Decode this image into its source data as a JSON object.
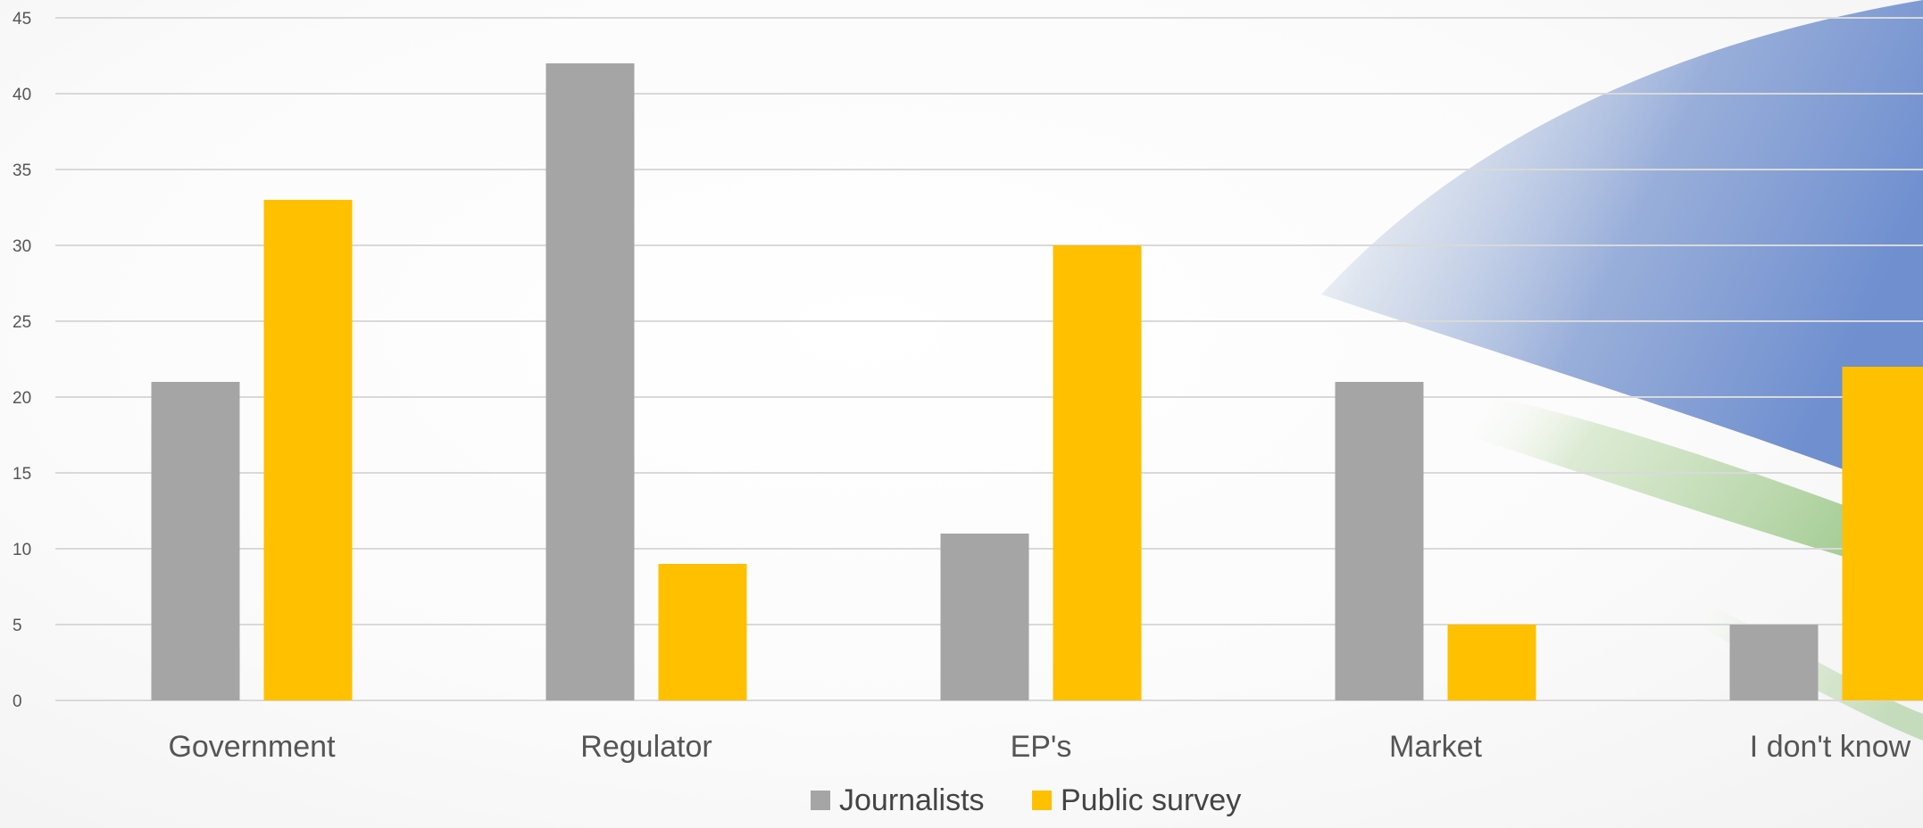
{
  "chart_data": {
    "type": "bar",
    "categories": [
      "Government",
      "Regulator",
      "EP's",
      "Market",
      "I don't know"
    ],
    "series": [
      {
        "name": "Journalists",
        "values": [
          21,
          42,
          11,
          21,
          5
        ],
        "color": "#a5a5a5"
      },
      {
        "name": "Public survey",
        "values": [
          33,
          9,
          30,
          5,
          22
        ],
        "color": "#ffc000"
      }
    ],
    "y_ticks": [
      "0",
      "5",
      "10",
      "15",
      "20",
      "25",
      "30",
      "35",
      "40",
      "45"
    ],
    "ylim": [
      0,
      45
    ],
    "grid": true,
    "legend_position": "bottom-center",
    "gridline_color": "#d9d9d9",
    "text_color": "#555555"
  }
}
